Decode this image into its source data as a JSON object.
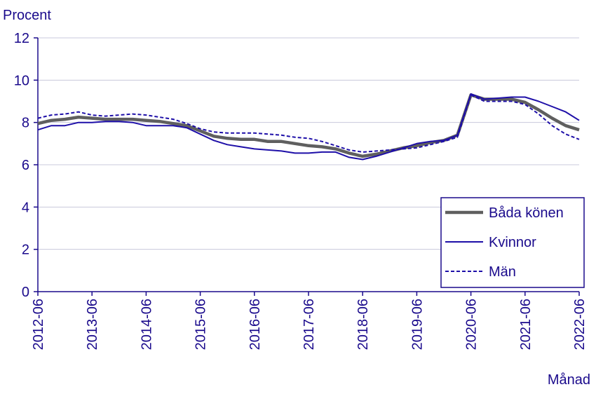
{
  "chart_data": {
    "type": "line",
    "y_label": "Procent",
    "x_label": "Månad",
    "categories": [
      "2012-06",
      null,
      null,
      null,
      "2013-06",
      null,
      null,
      null,
      "2014-06",
      null,
      null,
      null,
      "2015-06",
      null,
      null,
      null,
      "2016-06",
      null,
      null,
      null,
      "2017-06",
      null,
      null,
      null,
      "2018-06",
      null,
      null,
      null,
      "2019-06",
      null,
      null,
      null,
      "2020-06",
      null,
      null,
      null,
      "2021-06",
      null,
      null,
      null,
      "2022-06"
    ],
    "series": [
      {
        "name": "Båda könen",
        "color": "#5f5f5f",
        "style": "bold",
        "values": [
          7.95,
          8.1,
          8.15,
          8.25,
          8.2,
          8.15,
          8.15,
          8.15,
          8.1,
          8.05,
          7.95,
          7.85,
          7.6,
          7.35,
          7.25,
          7.2,
          7.2,
          7.1,
          7.1,
          7.0,
          6.9,
          6.85,
          6.75,
          6.55,
          6.4,
          6.5,
          6.65,
          6.8,
          6.9,
          7.05,
          7.15,
          7.4,
          9.3,
          9.1,
          9.1,
          9.1,
          8.95,
          8.6,
          8.2,
          7.85,
          7.65
        ]
      },
      {
        "name": "Kvinnor",
        "color": "#1e0fa8",
        "style": "solid",
        "values": [
          7.65,
          7.85,
          7.85,
          8.0,
          8.0,
          8.05,
          8.05,
          8.0,
          7.85,
          7.85,
          7.85,
          7.75,
          7.45,
          7.15,
          6.95,
          6.85,
          6.75,
          6.7,
          6.65,
          6.55,
          6.55,
          6.6,
          6.6,
          6.35,
          6.25,
          6.4,
          6.6,
          6.8,
          7.0,
          7.1,
          7.15,
          7.4,
          9.35,
          9.1,
          9.15,
          9.2,
          9.2,
          9.0,
          8.75,
          8.5,
          8.1
        ]
      },
      {
        "name": "Män",
        "color": "#1e0fa8",
        "style": "dashed",
        "values": [
          8.2,
          8.35,
          8.4,
          8.5,
          8.35,
          8.3,
          8.35,
          8.4,
          8.35,
          8.25,
          8.15,
          7.95,
          7.7,
          7.55,
          7.5,
          7.5,
          7.5,
          7.45,
          7.4,
          7.3,
          7.25,
          7.1,
          6.9,
          6.7,
          6.6,
          6.65,
          6.7,
          6.75,
          6.8,
          6.95,
          7.1,
          7.3,
          9.3,
          9.0,
          9.0,
          9.0,
          8.85,
          8.4,
          7.85,
          7.45,
          7.2
        ]
      }
    ],
    "ylim": [
      0,
      12
    ],
    "yticks": [
      0,
      2,
      4,
      6,
      8,
      10,
      12
    ],
    "grid": true,
    "legend": "bottom-right"
  }
}
